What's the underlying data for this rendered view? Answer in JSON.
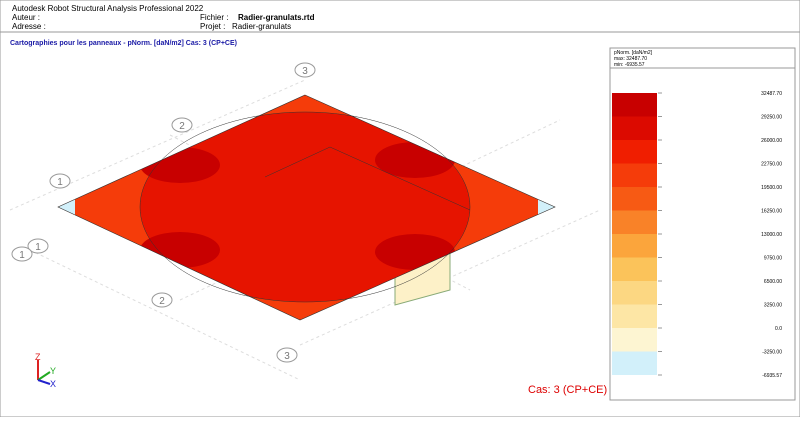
{
  "header": {
    "app": "Autodesk Robot Structural Analysis Professional 2022",
    "author_label": "Auteur :",
    "address_label": "Adresse :",
    "file_label": "Fichier :",
    "file": "Radier-granulats.rtd",
    "project_label": "Projet :",
    "project": "Radier-granulats"
  },
  "view": {
    "title": "Cartographies pour les panneaux - pNorm. [daN/m2] Cas: 3 (CP+CE)",
    "case": "Cas: 3 (CP+CE)",
    "grid_labels": [
      "3",
      "2",
      "1",
      "1",
      "1",
      "2",
      "3"
    ],
    "axes": [
      "Z",
      "Y",
      "X"
    ]
  },
  "legend": {
    "quantity": "pNorm. [daN/m2]",
    "max": "max: 32487.70",
    "min": "min: -6935.57",
    "labels": [
      "32487.70",
      "29250.00",
      "26000.00",
      "22750.00",
      "19500.00",
      "16250.00",
      "13000.00",
      "9750.00",
      "6500.00",
      "3250.00",
      "0.0",
      "-3250.00",
      "-6935.57"
    ],
    "colors": [
      "#c80000",
      "#dc0a00",
      "#f01e00",
      "#f53c0a",
      "#f75a14",
      "#f98228",
      "#fba53c",
      "#fbc35a",
      "#fcd782",
      "#fde6a5",
      "#fdf5d2",
      "#d2f0fa"
    ]
  }
}
